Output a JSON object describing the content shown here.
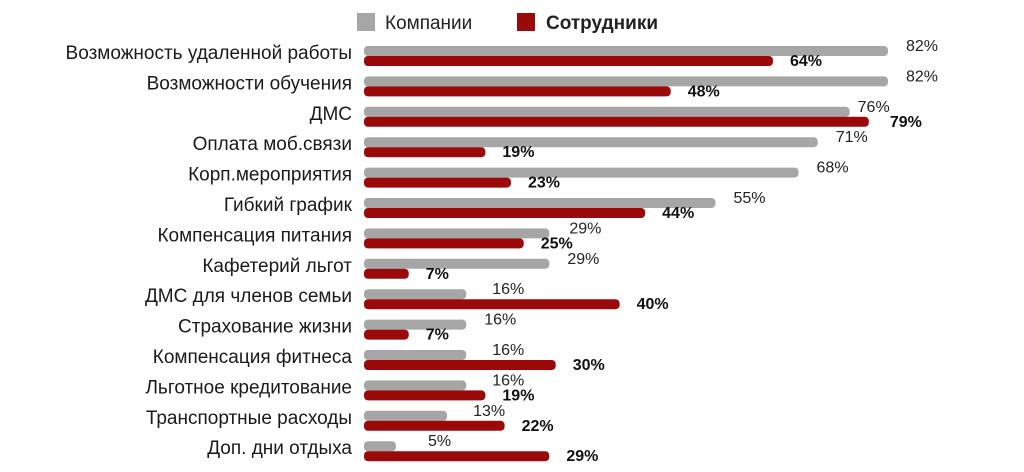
{
  "chart_data": {
    "type": "bar",
    "orientation": "horizontal",
    "legend_position": "top",
    "xlim": [
      0,
      100
    ],
    "grid": false,
    "categories": [
      "Возможность удаленной работы",
      "Возможности обучения",
      "ДМС",
      "Оплата моб.связи",
      "Корп.мероприятия",
      "Гибкий график",
      "Компенсация питания",
      "Кафетерий льгот",
      "ДМС для членов семьи",
      "Страхование жизни",
      "Компенсация фитнеса",
      "Льготное кредитование",
      "Транспортные расходы",
      "Доп. дни отдыха"
    ],
    "series": [
      {
        "name": "Компании",
        "color": "#a6a6a6",
        "values": [
          82,
          82,
          76,
          71,
          68,
          55,
          29,
          29,
          16,
          16,
          16,
          16,
          13,
          5
        ],
        "labels": [
          "82%",
          "82%",
          "76%",
          "71%",
          "68%",
          "55%",
          "29%",
          "29%",
          "16%",
          "16%",
          "16%",
          "16%",
          "13%",
          "5%"
        ]
      },
      {
        "name": "Сотрудники",
        "color": "#9b0a0a",
        "values": [
          64,
          48,
          79,
          19,
          23,
          44,
          25,
          7,
          40,
          7,
          30,
          19,
          22,
          29
        ],
        "labels": [
          "64%",
          "48%",
          "79%",
          "19%",
          "23%",
          "44%",
          "25%",
          "7%",
          "40%",
          "7%",
          "30%",
          "19%",
          "22%",
          "29%"
        ]
      }
    ]
  }
}
